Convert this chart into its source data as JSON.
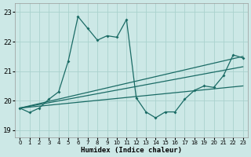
{
  "xlabel": "Humidex (Indice chaleur)",
  "bg_color": "#cce8e6",
  "grid_color": "#aad2ce",
  "line_color": "#1a6b65",
  "xlim": [
    -0.5,
    23.5
  ],
  "ylim": [
    18.75,
    23.3
  ],
  "yticks": [
    19,
    20,
    21,
    22,
    23
  ],
  "xticks": [
    0,
    1,
    2,
    3,
    4,
    5,
    6,
    7,
    8,
    9,
    10,
    11,
    12,
    13,
    14,
    15,
    16,
    17,
    18,
    19,
    20,
    21,
    22,
    23
  ],
  "series_main_x": [
    0,
    1,
    2,
    3,
    4,
    5,
    6,
    7,
    8,
    9,
    10,
    11,
    12,
    13,
    14,
    15,
    16,
    17,
    18,
    19,
    20,
    21,
    22,
    23
  ],
  "series_main_y": [
    19.75,
    19.6,
    19.75,
    20.05,
    20.3,
    21.35,
    22.85,
    22.45,
    22.05,
    22.2,
    22.15,
    22.75,
    20.1,
    19.62,
    19.42,
    19.62,
    19.62,
    20.05,
    20.35,
    20.5,
    20.45,
    20.85,
    21.55,
    21.45
  ],
  "series_linear": [
    {
      "x": [
        0,
        23
      ],
      "y": [
        19.75,
        20.5
      ]
    },
    {
      "x": [
        0,
        23
      ],
      "y": [
        19.75,
        21.15
      ]
    },
    {
      "x": [
        0,
        23
      ],
      "y": [
        19.75,
        21.5
      ]
    }
  ]
}
